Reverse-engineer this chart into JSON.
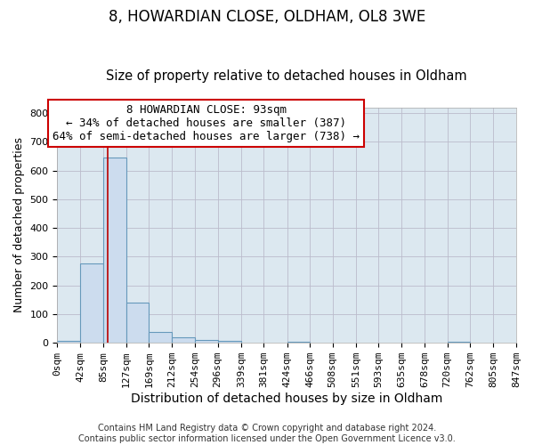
{
  "title1": "8, HOWARDIAN CLOSE, OLDHAM, OL8 3WE",
  "title2": "Size of property relative to detached houses in Oldham",
  "xlabel": "Distribution of detached houses by size in Oldham",
  "ylabel": "Number of detached properties",
  "footer1": "Contains HM Land Registry data © Crown copyright and database right 2024.",
  "footer2": "Contains public sector information licensed under the Open Government Licence v3.0.",
  "bin_edges": [
    0,
    42,
    85,
    127,
    169,
    212,
    254,
    296,
    339,
    381,
    424,
    466,
    508,
    551,
    593,
    635,
    678,
    720,
    762,
    805,
    847
  ],
  "bar_heights": [
    8,
    275,
    645,
    140,
    38,
    20,
    10,
    8,
    0,
    0,
    5,
    0,
    0,
    0,
    0,
    0,
    0,
    5,
    0,
    0
  ],
  "bar_color": "#ccdcee",
  "bar_edge_color": "#6699bb",
  "property_size": 93,
  "property_line_color": "#bb0000",
  "annotation_box_color": "#ffffff",
  "annotation_box_edge_color": "#cc0000",
  "annotation_line1": "8 HOWARDIAN CLOSE: 93sqm",
  "annotation_line2": "← 34% of detached houses are smaller (387)",
  "annotation_line3": "64% of semi-detached houses are larger (738) →",
  "ylim": [
    0,
    820
  ],
  "yticks": [
    0,
    100,
    200,
    300,
    400,
    500,
    600,
    700,
    800
  ],
  "plot_bg_color": "#dce8f0",
  "background_color": "#ffffff",
  "grid_color": "#bbbbcc",
  "title1_fontsize": 12,
  "title2_fontsize": 10.5,
  "xlabel_fontsize": 10,
  "ylabel_fontsize": 9,
  "tick_fontsize": 8,
  "annotation_fontsize": 9,
  "footer_fontsize": 7
}
